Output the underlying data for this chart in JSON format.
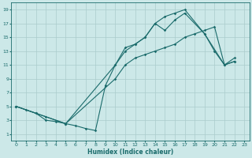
{
  "xlabel": "Humidex (Indice chaleur)",
  "bg_color": "#cce8e8",
  "grid_color": "#aacccc",
  "line_color": "#1a6b6b",
  "xlim": [
    -0.5,
    23.5
  ],
  "ylim": [
    0,
    20
  ],
  "xticks": [
    0,
    1,
    2,
    3,
    4,
    5,
    6,
    7,
    8,
    9,
    10,
    11,
    12,
    13,
    14,
    15,
    16,
    17,
    18,
    19,
    20,
    21,
    22,
    23
  ],
  "yticks": [
    1,
    3,
    5,
    7,
    9,
    11,
    13,
    15,
    17,
    19
  ],
  "line1_x": [
    0,
    1,
    2,
    3,
    4,
    5,
    6,
    7,
    8,
    9,
    10,
    11,
    12,
    13,
    14,
    15,
    16,
    17,
    19,
    21,
    22
  ],
  "line1_y": [
    5,
    4.5,
    4,
    3,
    2.8,
    2.5,
    2.2,
    1.8,
    1.5,
    8,
    11,
    13,
    14,
    15,
    17,
    18,
    18.5,
    19,
    15.5,
    11,
    11.5
  ],
  "line2_x": [
    0,
    2,
    3,
    5,
    10,
    11,
    12,
    13,
    14,
    15,
    16,
    17,
    19,
    20,
    21,
    22
  ],
  "line2_y": [
    5,
    4,
    3.5,
    2.5,
    11,
    13.5,
    14,
    15,
    17,
    16,
    17.5,
    18.5,
    15.5,
    13,
    11,
    11.5
  ],
  "line3_x": [
    0,
    5,
    10,
    11,
    12,
    13,
    14,
    15,
    16,
    17,
    18,
    19,
    20,
    21,
    22
  ],
  "line3_y": [
    5,
    2.5,
    9,
    11,
    12,
    12.5,
    13,
    13.5,
    14,
    15,
    15.5,
    16,
    16.5,
    11,
    12
  ]
}
